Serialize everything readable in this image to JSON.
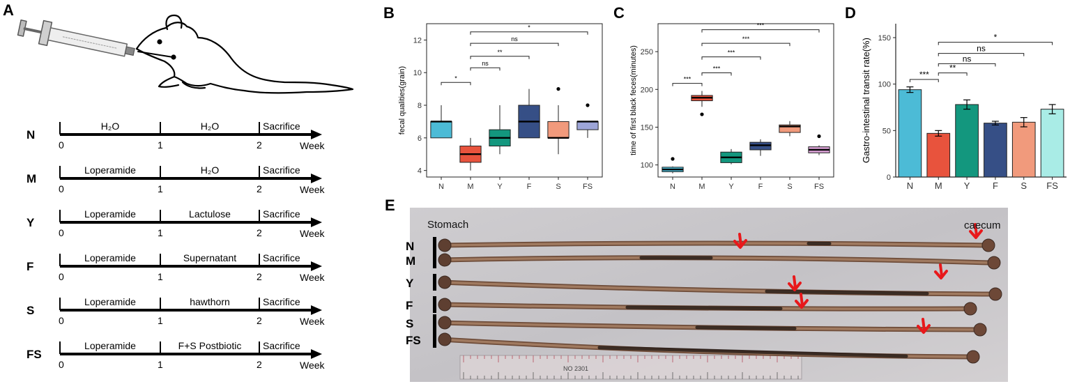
{
  "panels": {
    "a": {
      "letter": "A",
      "x_ticks": [
        "0",
        "1",
        "2"
      ],
      "x_unit": "Week",
      "groups": [
        {
          "name": "N",
          "phase1": "H₂O",
          "phase2": "H₂O",
          "end": "Sacrifice"
        },
        {
          "name": "M",
          "phase1": "Loperamide",
          "phase2": "H₂O",
          "end": "Sacrifice"
        },
        {
          "name": "Y",
          "phase1": "Loperamide",
          "phase2": "Lactulose",
          "end": "Sacrifice"
        },
        {
          "name": "F",
          "phase1": "Loperamide",
          "phase2": "Supernatant",
          "end": "Sacrifice"
        },
        {
          "name": "S",
          "phase1": "Loperamide",
          "phase2": "hawthorn",
          "end": "Sacrifice"
        },
        {
          "name": "FS",
          "phase1": "Loperamide",
          "phase2": "F+S  Postbiotic",
          "end": "Sacrifice"
        }
      ]
    },
    "b": {
      "letter": "B"
    },
    "c": {
      "letter": "C"
    },
    "d": {
      "letter": "D"
    },
    "e": {
      "letter": "E",
      "label_stomach": "Stomach",
      "label_caecum": "caecum",
      "row_labels": [
        "N",
        "M",
        "Y",
        "F",
        "S",
        "FS"
      ],
      "ruler_text": "NO 2301",
      "colors": {
        "background": "#c9c7c9",
        "intestine": "#8a6148",
        "dark_content": "#241a16",
        "arrow": "#e8181b",
        "ruler": "#dcd4d6"
      }
    }
  },
  "chart_data": [
    {
      "type": "box",
      "panel": "B",
      "ylabel": "fecal qualities(grain)",
      "categories": [
        "N",
        "M",
        "Y",
        "F",
        "S",
        "FS"
      ],
      "yticks": [
        4,
        6,
        8,
        10,
        12
      ],
      "ylim": [
        3.6,
        13
      ],
      "colors": [
        "#4cbbd6",
        "#e8533d",
        "#13977e",
        "#364f86",
        "#f19a7c",
        "#9da5d8"
      ],
      "boxes": [
        {
          "min": 6,
          "q1": 6,
          "median": 7,
          "q3": 7,
          "max": 8,
          "outliers": []
        },
        {
          "min": 4,
          "q1": 4.5,
          "median": 5,
          "q3": 5.5,
          "max": 6,
          "outliers": []
        },
        {
          "min": 5,
          "q1": 5.5,
          "median": 6,
          "q3": 6.5,
          "max": 8,
          "outliers": []
        },
        {
          "min": 6,
          "q1": 6,
          "median": 7,
          "q3": 8,
          "max": 9,
          "outliers": []
        },
        {
          "min": 5,
          "q1": 6,
          "median": 6,
          "q3": 7,
          "max": 8,
          "outliers": [
            9
          ]
        },
        {
          "min": 6,
          "q1": 6.5,
          "median": 7,
          "q3": 7,
          "max": 7,
          "outliers": [
            8
          ]
        }
      ],
      "comparisons": [
        {
          "from": "N",
          "to": "M",
          "label": "*"
        },
        {
          "from": "M",
          "to": "Y",
          "label": "ns"
        },
        {
          "from": "M",
          "to": "F",
          "label": "**"
        },
        {
          "from": "M",
          "to": "S",
          "label": "ns"
        },
        {
          "from": "M",
          "to": "FS",
          "label": "*"
        }
      ]
    },
    {
      "type": "box",
      "panel": "C",
      "ylabel": "time of first black feces(minutes)",
      "categories": [
        "N",
        "M",
        "Y",
        "F",
        "S",
        "FS"
      ],
      "yticks": [
        100,
        150,
        200,
        250
      ],
      "ylim": [
        84,
        287
      ],
      "colors": [
        "#4cbbd6",
        "#e8533d",
        "#13977e",
        "#364f86",
        "#f19a7c",
        "#d8a0d4"
      ],
      "boxes": [
        {
          "min": 89,
          "q1": 91,
          "median": 94,
          "q3": 97,
          "max": 98,
          "outliers": [
            108
          ]
        },
        {
          "min": 177,
          "q1": 185,
          "median": 189,
          "q3": 192,
          "max": 198,
          "outliers": [
            167
          ]
        },
        {
          "min": 101,
          "q1": 103,
          "median": 110,
          "q3": 117,
          "max": 121,
          "outliers": []
        },
        {
          "min": 112,
          "q1": 120,
          "median": 126,
          "q3": 130,
          "max": 134,
          "outliers": []
        },
        {
          "min": 138,
          "q1": 143,
          "median": 151,
          "q3": 153,
          "max": 158,
          "outliers": []
        },
        {
          "min": 113,
          "q1": 116,
          "median": 120,
          "q3": 124,
          "max": 126,
          "outliers": [
            138
          ]
        }
      ],
      "comparisons": [
        {
          "from": "N",
          "to": "M",
          "label": "***"
        },
        {
          "from": "M",
          "to": "Y",
          "label": "***"
        },
        {
          "from": "M",
          "to": "F",
          "label": "***"
        },
        {
          "from": "M",
          "to": "S",
          "label": "***"
        },
        {
          "from": "M",
          "to": "FS",
          "label": "***"
        }
      ]
    },
    {
      "type": "bar",
      "panel": "D",
      "ylabel": "Gastro-intestinal transit rate(%)",
      "categories": [
        "N",
        "M",
        "Y",
        "F",
        "S",
        "FS"
      ],
      "values": [
        94,
        47,
        78,
        58,
        59,
        73
      ],
      "errors": [
        3,
        3,
        5,
        2,
        5,
        5
      ],
      "yticks": [
        0,
        50,
        100,
        150
      ],
      "ylim": [
        0,
        165
      ],
      "colors": [
        "#4cbbd6",
        "#e8533d",
        "#13977e",
        "#364f86",
        "#f19a7c",
        "#a9ece6"
      ],
      "comparisons": [
        {
          "from": "N",
          "to": "M",
          "label": "***"
        },
        {
          "from": "M",
          "to": "Y",
          "label": "**"
        },
        {
          "from": "M",
          "to": "F",
          "label": "ns"
        },
        {
          "from": "M",
          "to": "S",
          "label": "ns"
        },
        {
          "from": "M",
          "to": "FS",
          "label": "*"
        }
      ]
    }
  ]
}
